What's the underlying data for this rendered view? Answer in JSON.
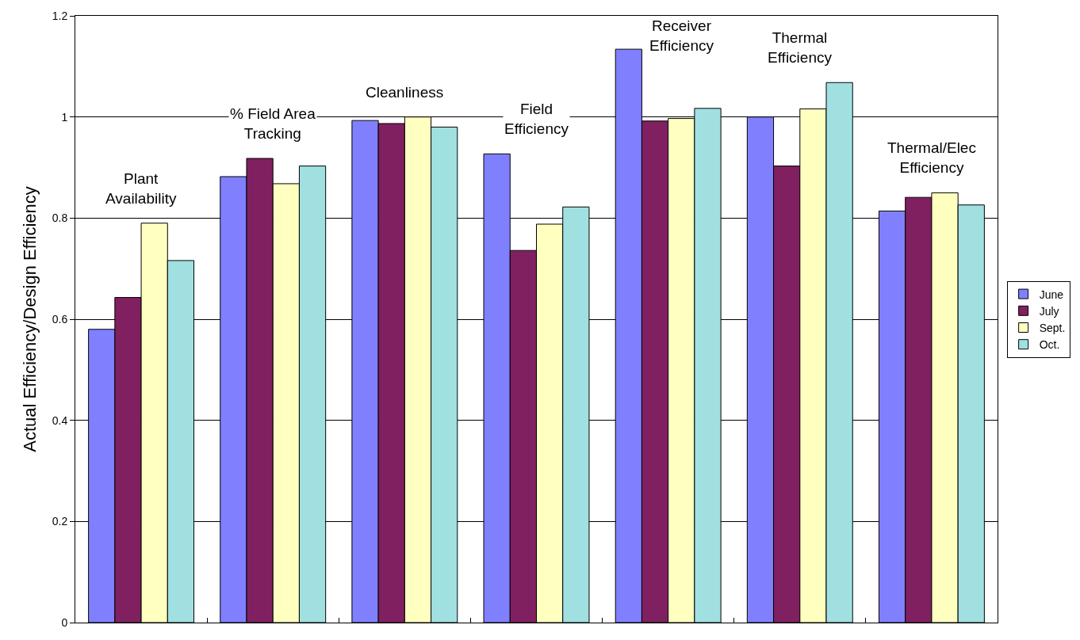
{
  "chart_data": {
    "type": "bar",
    "ylabel": "Actual Efficiency/Design Efficiency",
    "categories": [
      "Plant Availability",
      "% Field Area Tracking",
      "Cleanliness",
      "Field Efficiency",
      "Receiver Efficiency",
      "Thermal Efficiency",
      "Thermal/Elec Efficiency"
    ],
    "series": [
      {
        "name": "June",
        "color": "#8080ff",
        "values": [
          0.58,
          0.882,
          0.993,
          0.927,
          1.134,
          1.0,
          0.814
        ]
      },
      {
        "name": "July",
        "color": "#802060",
        "values": [
          0.643,
          0.918,
          0.987,
          0.736,
          0.992,
          0.903,
          0.841
        ]
      },
      {
        "name": "Sept.",
        "color": "#ffffc0",
        "values": [
          0.79,
          0.868,
          1.0,
          0.788,
          0.997,
          1.016,
          0.85
        ]
      },
      {
        "name": "Oct.",
        "color": "#a0e0e0",
        "values": [
          0.716,
          0.903,
          0.98,
          0.822,
          1.017,
          1.068,
          0.826
        ]
      }
    ],
    "ylim": [
      0,
      1.2
    ],
    "yticks": [
      0,
      0.2,
      0.4,
      0.6,
      0.8,
      1,
      1.2
    ],
    "grid": "y",
    "legend": "right"
  }
}
